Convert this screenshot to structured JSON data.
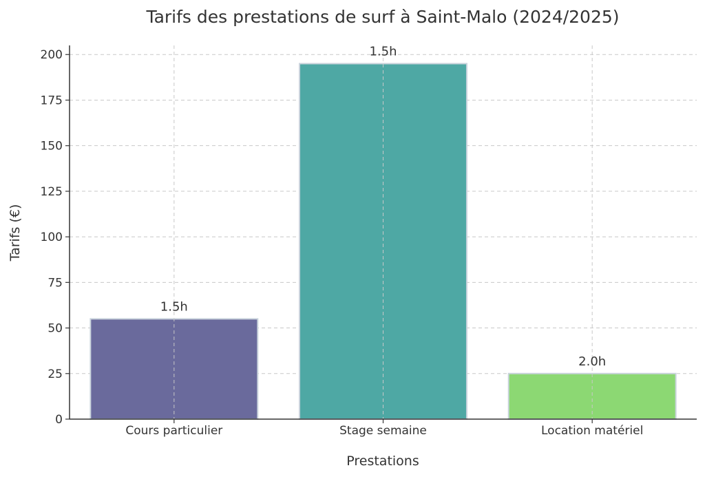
{
  "chart_data": {
    "type": "bar",
    "title": "Tarifs des prestations de surf à Saint-Malo (2024/2025)",
    "xlabel": "Prestations",
    "ylabel": "Tarifs (€)",
    "categories": [
      "Cours particulier",
      "Stage semaine",
      "Location matériel"
    ],
    "values": [
      55,
      195,
      25
    ],
    "data_labels": [
      "1.5h",
      "1.5h",
      "2.0h"
    ],
    "colors": [
      "#6a6a9c",
      "#4ea8a4",
      "#8cd873"
    ],
    "ylim": [
      0,
      205
    ],
    "yticks": [
      0,
      25,
      50,
      75,
      100,
      125,
      150,
      175,
      200
    ],
    "grid": true
  }
}
